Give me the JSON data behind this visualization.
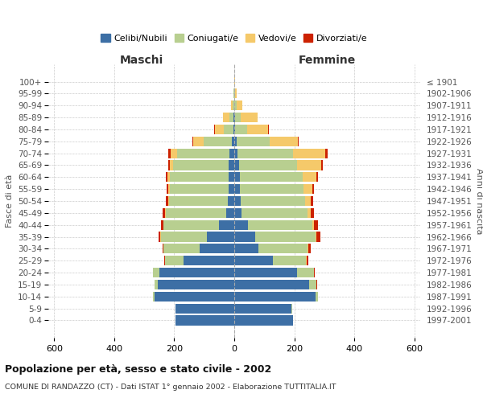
{
  "age_groups": [
    "0-4",
    "5-9",
    "10-14",
    "15-19",
    "20-24",
    "25-29",
    "30-34",
    "35-39",
    "40-44",
    "45-49",
    "50-54",
    "55-59",
    "60-64",
    "65-69",
    "70-74",
    "75-79",
    "80-84",
    "85-89",
    "90-94",
    "95-99",
    "100+"
  ],
  "birth_years": [
    "1997-2001",
    "1992-1996",
    "1987-1991",
    "1982-1986",
    "1977-1981",
    "1972-1976",
    "1967-1971",
    "1962-1966",
    "1957-1961",
    "1952-1956",
    "1947-1951",
    "1942-1946",
    "1937-1941",
    "1932-1936",
    "1927-1931",
    "1922-1926",
    "1917-1921",
    "1912-1916",
    "1907-1911",
    "1902-1906",
    "≤ 1901"
  ],
  "males": {
    "celibe": [
      195,
      195,
      265,
      255,
      250,
      170,
      115,
      90,
      50,
      28,
      22,
      20,
      20,
      18,
      15,
      8,
      4,
      2,
      0,
      0,
      0
    ],
    "coniugato": [
      2,
      2,
      5,
      10,
      20,
      60,
      120,
      155,
      185,
      200,
      195,
      195,
      195,
      185,
      175,
      95,
      30,
      15,
      5,
      2,
      0
    ],
    "vedovo": [
      0,
      0,
      0,
      0,
      0,
      1,
      1,
      2,
      2,
      3,
      4,
      5,
      8,
      12,
      22,
      35,
      30,
      20,
      5,
      2,
      0
    ],
    "divorziato": [
      0,
      0,
      0,
      0,
      2,
      3,
      4,
      5,
      6,
      7,
      8,
      6,
      6,
      5,
      8,
      2,
      2,
      0,
      0,
      0,
      0
    ]
  },
  "females": {
    "nubile": [
      195,
      190,
      270,
      250,
      210,
      130,
      80,
      70,
      45,
      25,
      22,
      20,
      18,
      15,
      12,
      8,
      4,
      2,
      0,
      0,
      0
    ],
    "coniugata": [
      2,
      4,
      10,
      25,
      55,
      110,
      165,
      200,
      215,
      220,
      215,
      210,
      210,
      195,
      185,
      110,
      40,
      20,
      8,
      2,
      0
    ],
    "vedova": [
      0,
      0,
      0,
      0,
      1,
      2,
      3,
      4,
      6,
      10,
      18,
      30,
      45,
      80,
      105,
      95,
      70,
      55,
      20,
      5,
      2
    ],
    "divorziata": [
      0,
      0,
      0,
      2,
      3,
      6,
      8,
      12,
      12,
      10,
      8,
      7,
      7,
      6,
      8,
      2,
      2,
      0,
      0,
      0,
      0
    ]
  },
  "colors": {
    "celibe": "#3d6fa5",
    "coniugato": "#b8cf90",
    "vedovo": "#f5c96a",
    "divorziato": "#cc2200"
  },
  "legend_labels": [
    "Celibi/Nubili",
    "Coniugati/e",
    "Vedovi/e",
    "Divorziati/e"
  ],
  "title": "Popolazione per età, sesso e stato civile - 2002",
  "subtitle": "COMUNE DI RANDAZZO (CT) - Dati ISTAT 1° gennaio 2002 - Elaborazione TUTTITALIA.IT",
  "xlabel_left": "Maschi",
  "xlabel_right": "Femmine",
  "ylabel_left": "Fasce di età",
  "ylabel_right": "Anni di nascita",
  "xlim": 620,
  "background_color": "#ffffff",
  "grid_color": "#cccccc"
}
